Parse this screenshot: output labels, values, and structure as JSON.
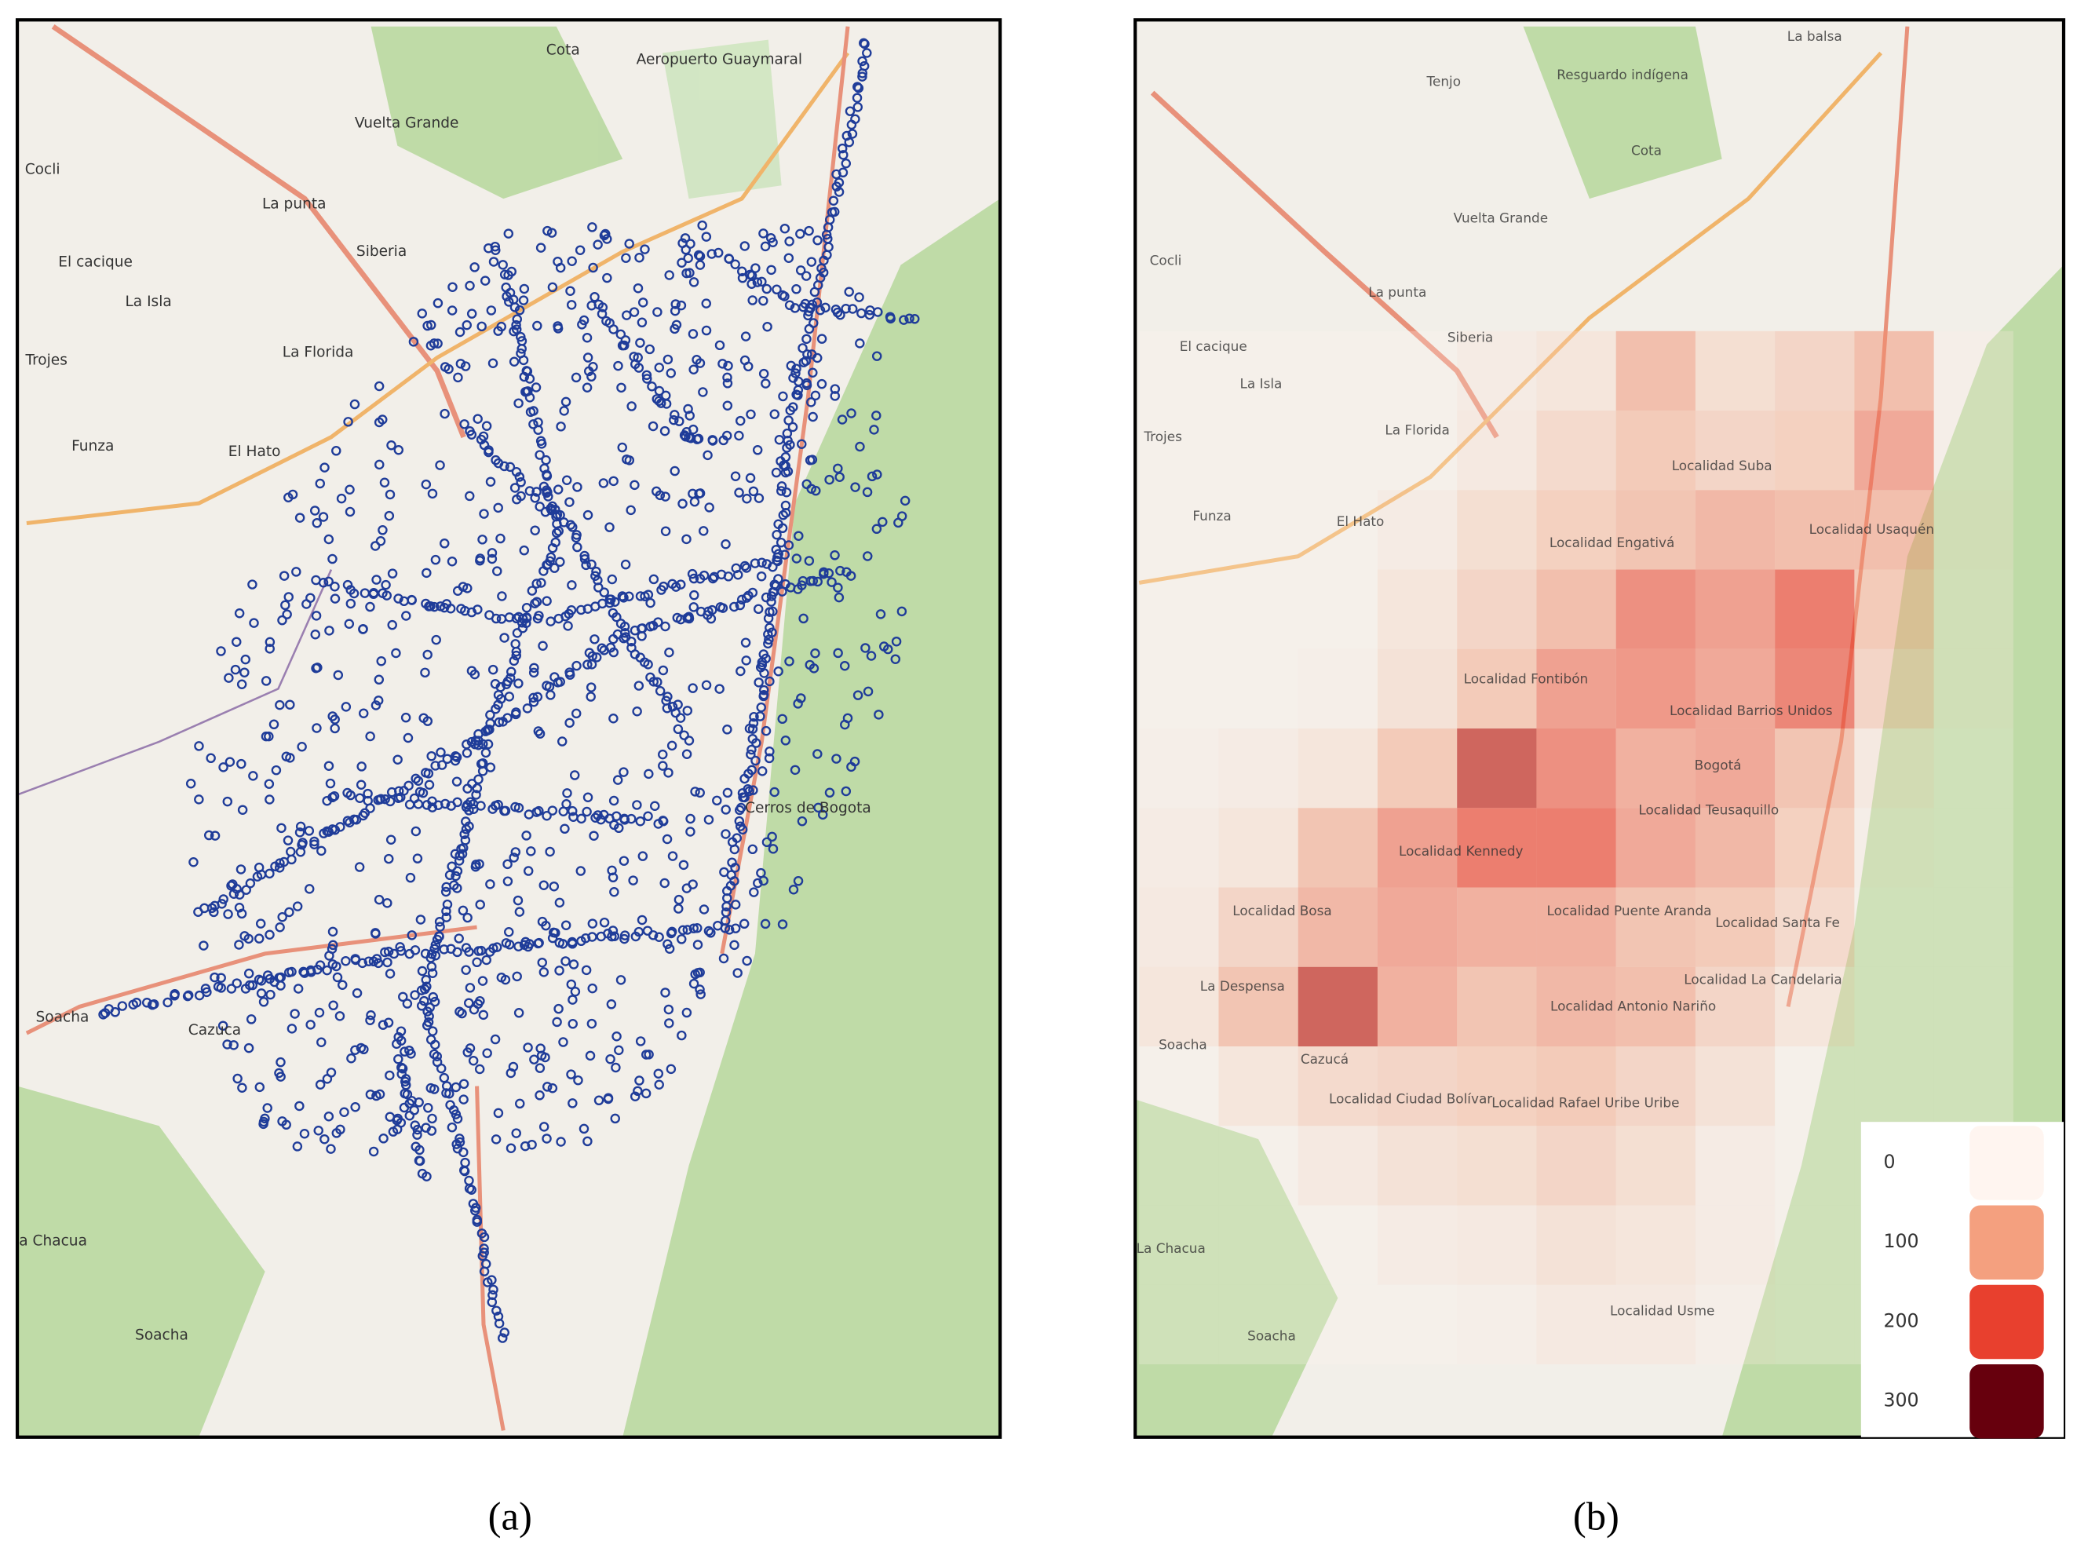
{
  "panel_a": {
    "caption": "(a)",
    "labels": [
      "Cota",
      "Aeropuerto Guaymaral",
      "Vuelta Grande",
      "Cocli",
      "La punta",
      "Siberia",
      "El cacique",
      "La Isla",
      "La Florida",
      "Trojes",
      "Funza",
      "El Hato",
      "Soacha",
      "Cazuca",
      "Cerros de Bogota",
      "a Chacua",
      "Soacha"
    ]
  },
  "panel_b": {
    "caption": "(b)",
    "labels": [
      "La balsa",
      "Resguardo indígena",
      "Tenjo",
      "Cota",
      "Vuelta Grande",
      "Cocli",
      "La punta",
      "Siberia",
      "El cacique",
      "La Isla",
      "La Florida",
      "Trojes",
      "Funza",
      "El Hato",
      "Localidad Suba",
      "Localidad Engativá",
      "Localidad Usaquén",
      "Localidad Fontibón",
      "Localidad Barrios Unidos",
      "Bogotá",
      "Localidad Teusaquillo",
      "Localidad Kennedy",
      "Localidad Bosa",
      "Localidad Puente Aranda",
      "Localidad Santa Fe",
      "La Despensa",
      "Localidad La Candelaria",
      "Localidad Antonio Nariño",
      "Soacha",
      "Cazucá",
      "Localidad Ciudad Bolívar",
      "Localidad Rafael Uribe Uribe",
      "La Chacua",
      "Soacha",
      "Localidad Usme"
    ],
    "heatmap": {
      "values": [
        [
          0,
          0,
          0,
          0,
          20,
          40,
          120,
          60,
          80,
          120,
          10
        ],
        [
          0,
          0,
          0,
          0,
          30,
          70,
          100,
          80,
          90,
          150,
          10
        ],
        [
          0,
          0,
          0,
          20,
          60,
          90,
          110,
          130,
          120,
          120,
          20
        ],
        [
          0,
          0,
          0,
          40,
          80,
          120,
          180,
          160,
          200,
          100,
          10
        ],
        [
          0,
          0,
          10,
          50,
          100,
          160,
          170,
          150,
          190,
          80,
          10
        ],
        [
          10,
          20,
          40,
          100,
          230,
          180,
          140,
          150,
          110,
          30,
          0
        ],
        [
          20,
          40,
          110,
          160,
          200,
          200,
          150,
          130,
          90,
          10,
          0
        ],
        [
          30,
          80,
          130,
          150,
          140,
          140,
          110,
          100,
          70,
          0,
          0
        ],
        [
          40,
          110,
          230,
          140,
          110,
          130,
          120,
          80,
          40,
          0,
          0
        ],
        [
          0,
          40,
          70,
          80,
          90,
          100,
          80,
          50,
          0,
          0,
          0
        ],
        [
          0,
          0,
          30,
          50,
          60,
          80,
          60,
          20,
          0,
          0,
          0
        ],
        [
          0,
          0,
          0,
          20,
          30,
          50,
          40,
          20,
          0,
          0,
          0
        ],
        [
          0,
          0,
          0,
          0,
          10,
          30,
          30,
          10,
          0,
          0,
          0
        ]
      ],
      "legend_ticks": [
        0,
        100,
        200,
        300
      ],
      "legend_colors": [
        "#fff5f0",
        "#f4a07f",
        "#e8402e",
        "#67000d"
      ]
    }
  }
}
